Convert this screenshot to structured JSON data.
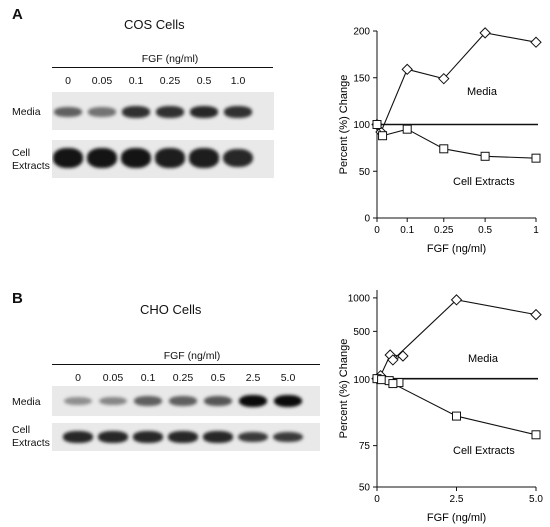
{
  "panel_a": {
    "letter": "A",
    "title": "COS Cells",
    "fgf_header": "FGF (ng/ml)",
    "lanes": [
      "0",
      "0.05",
      "0.1",
      "0.25",
      "0.5",
      "1.0"
    ],
    "row_labels": {
      "media": "Media",
      "cell_line1": "Cell",
      "cell_line2": "Extracts"
    },
    "media_intensity": [
      0.55,
      0.45,
      0.8,
      0.8,
      0.85,
      0.8
    ],
    "extract_intensity": [
      0.95,
      0.95,
      0.95,
      0.9,
      0.9,
      0.85
    ]
  },
  "panel_b": {
    "letter": "B",
    "title": "CHO Cells",
    "fgf_header": "FGF (ng/ml)",
    "lanes": [
      "0",
      "0.05",
      "0.1",
      "0.25",
      "0.5",
      "2.5",
      "5.0"
    ],
    "row_labels": {
      "media": "Media",
      "cell_line1": "Cell",
      "cell_line2": "Extracts"
    },
    "media_intensity": [
      0.3,
      0.35,
      0.55,
      0.55,
      0.6,
      1.0,
      1.0
    ],
    "extract_intensity": [
      0.85,
      0.85,
      0.85,
      0.85,
      0.85,
      0.75,
      0.75
    ]
  },
  "chart_data": [
    {
      "type": "line",
      "xlabel": "FGF (ng/ml)",
      "ylabel": "Percent (%) Change",
      "xlim": [
        0,
        1
      ],
      "ylim": [
        0,
        200
      ],
      "x_ticks": [
        0,
        0.1,
        0.25,
        0.5,
        1
      ],
      "x_tick_labels": [
        "0",
        "0.1",
        "0.25",
        "0.5",
        "1"
      ],
      "x_tick_pos": [
        0,
        0.19,
        0.42,
        0.68,
        1.0
      ],
      "y_ticks": [
        0,
        50,
        100,
        150,
        200
      ],
      "y_tick_labels": [
        "0",
        "50",
        "100",
        "150",
        "200"
      ],
      "reference_line": 100,
      "series": [
        {
          "name": "Media",
          "marker": "diamond",
          "x": [
            0,
            0.05,
            0.1,
            0.25,
            0.5,
            1.0
          ],
          "xpos": [
            0,
            0.025,
            0.19,
            0.42,
            0.68,
            1.0
          ],
          "ypos_extra": [
            0,
            0.015,
            0.05,
            0,
            0,
            0
          ],
          "values": [
            100,
            92,
            159,
            149,
            198,
            188
          ]
        },
        {
          "name": "Cell Extracts",
          "marker": "square",
          "x": [
            0,
            0.05,
            0.1,
            0.25,
            0.5,
            1.0
          ],
          "xpos": [
            0,
            0.035,
            0.19,
            0.42,
            0.68,
            1.0
          ],
          "values": [
            100,
            88,
            95,
            74,
            66,
            64
          ]
        }
      ]
    },
    {
      "type": "line",
      "xlabel": "FGF (ng/ml)",
      "ylabel": "Percent (%) Change",
      "xlim": [
        0,
        5
      ],
      "ylim": [
        50,
        1000
      ],
      "scale": "log",
      "x_ticks": [
        0,
        2.5,
        5
      ],
      "x_tick_labels": [
        "0",
        "2.5",
        "5.0"
      ],
      "y_ticks": [
        50,
        75,
        100,
        500,
        1000
      ],
      "y_tick_labels": [
        "50",
        "75",
        "100",
        "500",
        "1000"
      ],
      "y_tick_pos": [
        0,
        0.21,
        0.545,
        0.79,
        0.96
      ],
      "reference_line": 100,
      "series": [
        {
          "name": "Media",
          "marker": "diamond",
          "x": [
            0,
            0.05,
            0.1,
            0.25,
            0.5,
            2.5,
            5.0
          ],
          "values": [
            100,
            103,
            210,
            200,
            185,
            930,
            660
          ],
          "ypos": [
            0.55,
            0.565,
            0.67,
            0.665,
            0.645,
            0.95,
            0.875
          ]
        },
        {
          "name": "Cell Extracts",
          "marker": "square",
          "x": [
            0,
            0.05,
            0.1,
            0.25,
            0.5,
            2.5,
            5.0
          ],
          "values": [
            100,
            100,
            99,
            98,
            98,
            83,
            76
          ],
          "ypos": [
            0.55,
            0.545,
            0.54,
            0.53,
            0.525,
            0.36,
            0.265
          ]
        }
      ]
    }
  ]
}
